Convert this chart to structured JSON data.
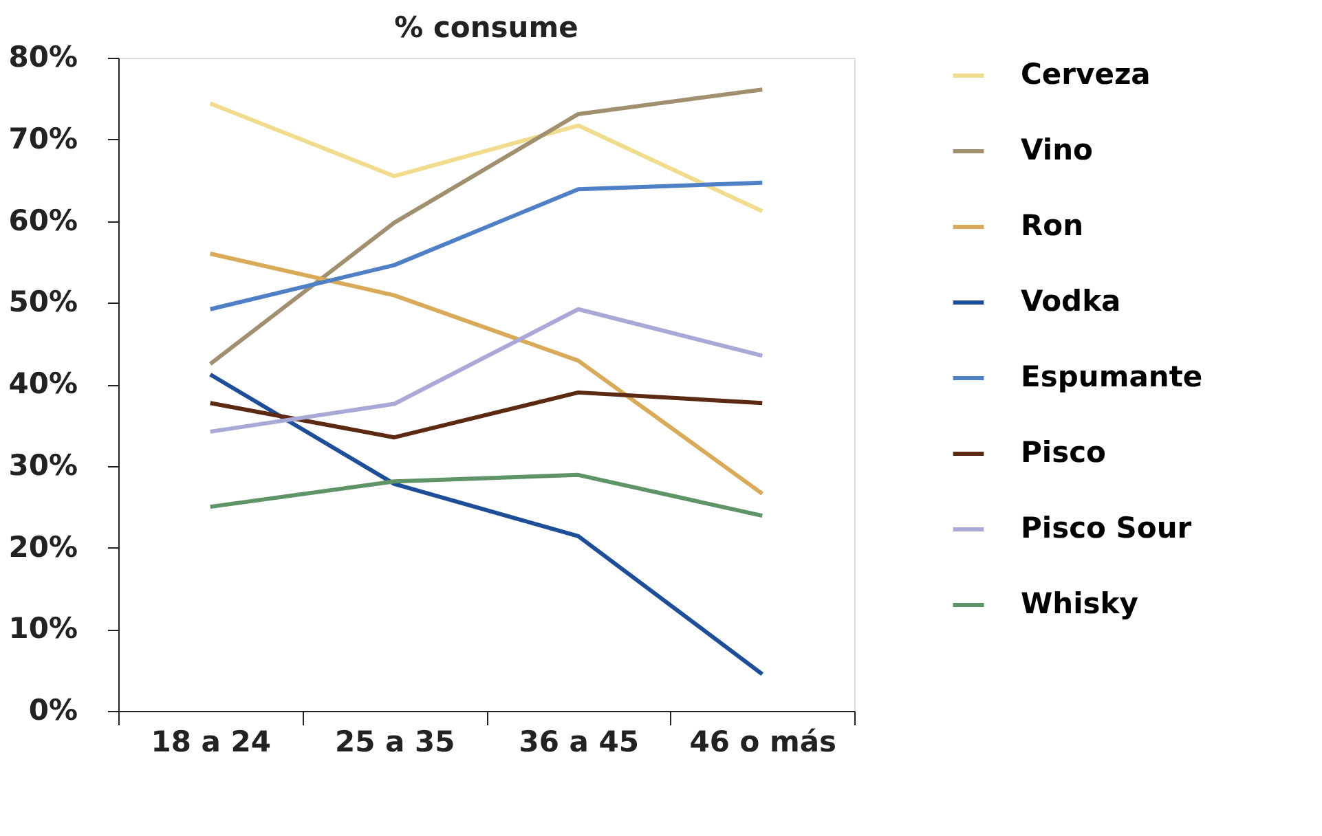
{
  "chart_data": {
    "type": "line",
    "title": "% consume",
    "categories": [
      "18 a 24",
      "25 a 35",
      "36 a 45",
      "46 o más"
    ],
    "series": [
      {
        "name": "Cerveza",
        "color": "#f0dc8c",
        "values": [
          74.4,
          65.5,
          71.7,
          61.2
        ]
      },
      {
        "name": "Vino",
        "color": "#a09070",
        "values": [
          42.5,
          59.8,
          73.1,
          76.1
        ]
      },
      {
        "name": "Ron",
        "color": "#d8aa5a",
        "values": [
          56.0,
          50.9,
          42.9,
          26.6
        ]
      },
      {
        "name": "Vodka",
        "color": "#1f4e99",
        "values": [
          41.2,
          27.8,
          21.4,
          4.5
        ]
      },
      {
        "name": "Espumante",
        "color": "#4f7fc4",
        "values": [
          49.2,
          54.6,
          63.9,
          64.7
        ]
      },
      {
        "name": "Pisco",
        "color": "#5c2a12",
        "values": [
          37.7,
          33.5,
          39.0,
          37.7
        ]
      },
      {
        "name": "Pisco Sour",
        "color": "#a9a8d6",
        "values": [
          34.2,
          37.6,
          49.2,
          43.5
        ]
      },
      {
        "name": "Whisky",
        "color": "#5e9467",
        "values": [
          25.0,
          28.1,
          28.9,
          23.9
        ]
      }
    ],
    "ylim": [
      0,
      80
    ],
    "yticks": [
      {
        "value": 0,
        "label": "0%"
      },
      {
        "value": 10,
        "label": "10%"
      },
      {
        "value": 20,
        "label": "20%"
      },
      {
        "value": 30,
        "label": "30%"
      },
      {
        "value": 40,
        "label": "40%"
      },
      {
        "value": 50,
        "label": "50%"
      },
      {
        "value": 60,
        "label": "60%"
      },
      {
        "value": 70,
        "label": "70%"
      },
      {
        "value": 80,
        "label": "80%"
      }
    ],
    "grid": false,
    "legend": "right",
    "marker": "none",
    "line_style": "solid"
  }
}
